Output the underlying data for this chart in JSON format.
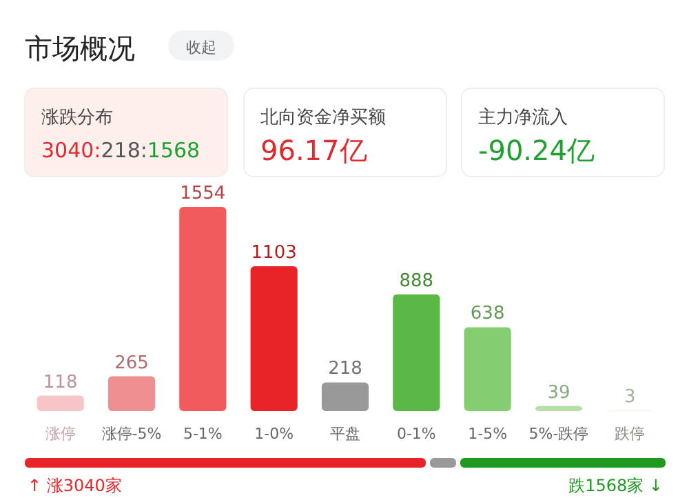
{
  "chart_data": [
    {
      "type": "other",
      "title": "市场概况",
      "annotations": [
        "收起",
        "涨跌分布",
        "3040:218:1568",
        "北向资金净买额",
        "96.17亿",
        "主力净流入",
        "-90.24亿",
        "↑ 涨3040家",
        "跌1568家 ↓"
      ]
    },
    {
      "type": "bar",
      "categories": [
        "涨停",
        "涨停-5%",
        "5-1%",
        "1-0%",
        "平盘",
        "0-1%",
        "1-5%",
        "5%-跌停",
        "跌停"
      ],
      "values": [
        118,
        265,
        1554,
        1103,
        218,
        888,
        638,
        39,
        3
      ],
      "colors": [
        "#f7c5c7",
        "#f08f92",
        "#f25b5e",
        "#e82428",
        "#999999",
        "#5bb846",
        "#84cd71",
        "#b5e0a8",
        "#d9efd2"
      ],
      "data_labels": true
    }
  ]
}
